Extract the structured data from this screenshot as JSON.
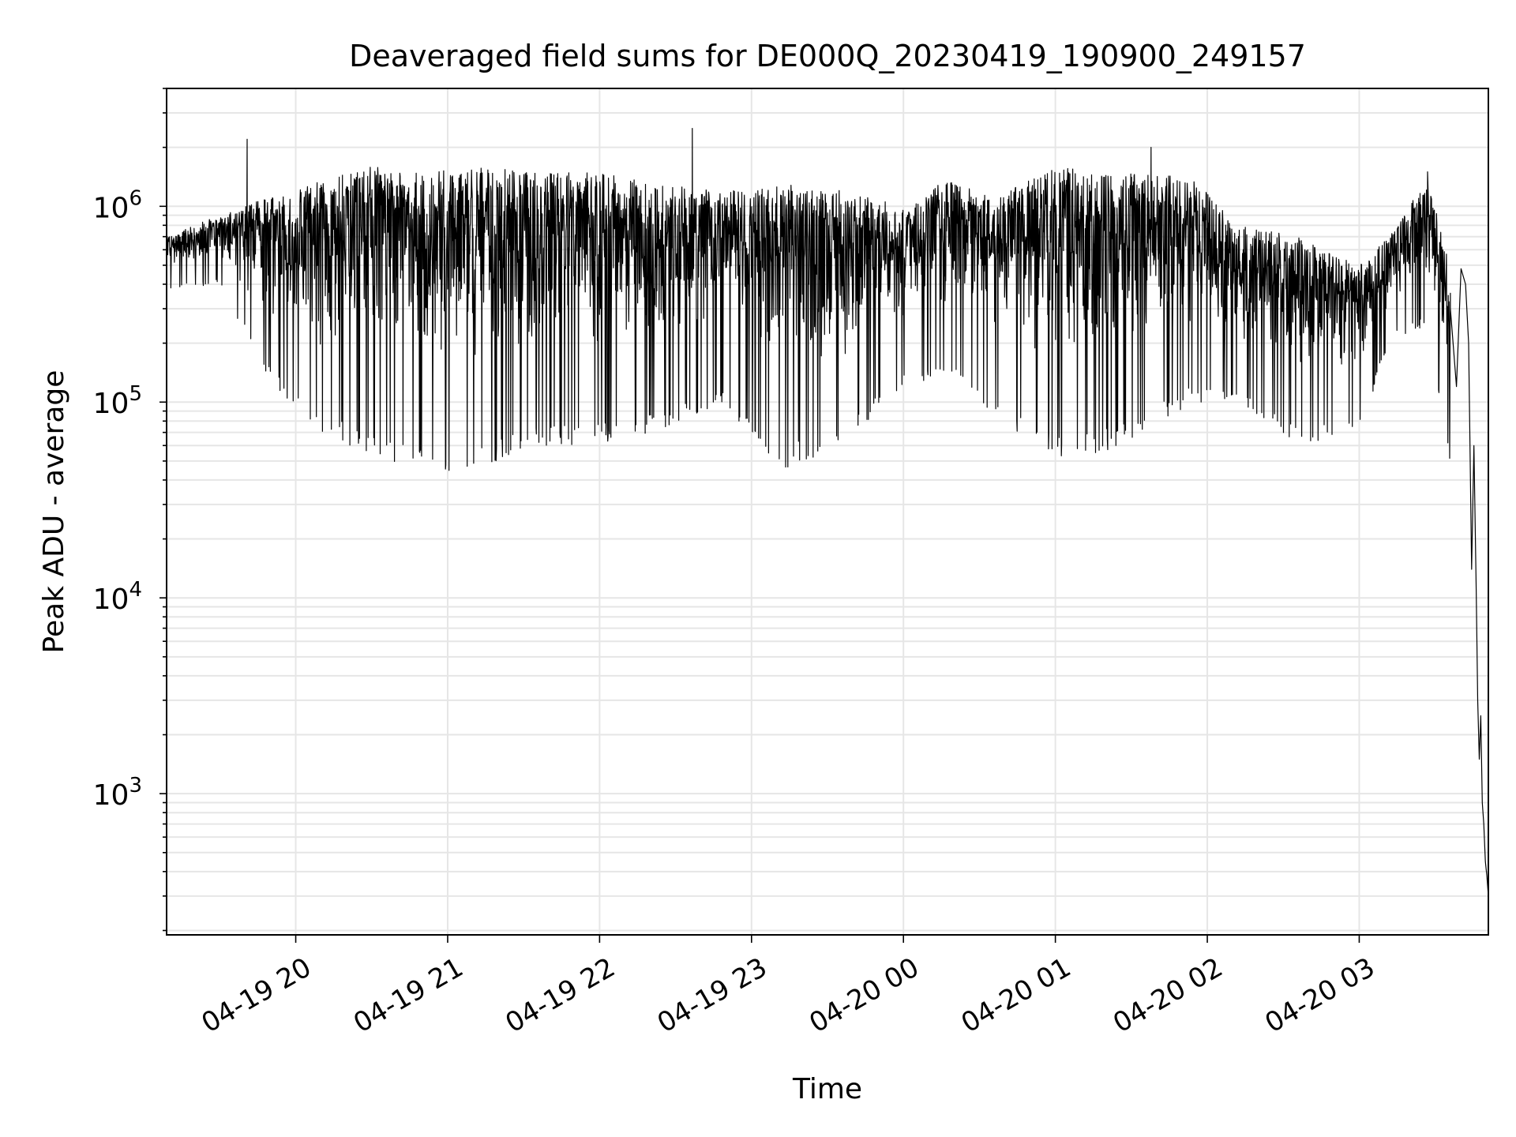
{
  "chart_data": {
    "type": "line",
    "title": "Deaveraged field sums for DE000Q_20230419_190900_249157",
    "xlabel": "Time",
    "ylabel": "Peak ADU - average",
    "yscale": "log",
    "ylim": [
      190,
      4000000
    ],
    "xlim_hours": [
      19.15,
      27.85
    ],
    "grid": true,
    "line_color": "#000000",
    "grid_color": "#e6e6e6",
    "x_ticks": [
      {
        "label": "04-19 20",
        "hour": 20
      },
      {
        "label": "04-19 21",
        "hour": 21
      },
      {
        "label": "04-19 22",
        "hour": 22
      },
      {
        "label": "04-19 23",
        "hour": 23
      },
      {
        "label": "04-20 00",
        "hour": 24
      },
      {
        "label": "04-20 01",
        "hour": 25
      },
      {
        "label": "04-20 02",
        "hour": 26
      },
      {
        "label": "04-20 03",
        "hour": 27
      }
    ],
    "y_ticks": [
      {
        "base": "10",
        "exp": "3",
        "value": 1000
      },
      {
        "base": "10",
        "exp": "4",
        "value": 10000
      },
      {
        "base": "10",
        "exp": "5",
        "value": 100000
      },
      {
        "base": "10",
        "exp": "6",
        "value": 1000000
      }
    ],
    "envelope": [
      {
        "hour": 19.15,
        "lo": 380000,
        "hi": 700000
      },
      {
        "hour": 19.5,
        "lo": 400000,
        "hi": 900000
      },
      {
        "hour": 19.8,
        "lo": 140000,
        "hi": 1100000
      },
      {
        "hour": 20.1,
        "lo": 70000,
        "hi": 1300000
      },
      {
        "hour": 20.5,
        "lo": 55000,
        "hi": 1600000
      },
      {
        "hour": 20.85,
        "lo": 43000,
        "hi": 1500000
      },
      {
        "hour": 21.2,
        "lo": 45000,
        "hi": 1600000
      },
      {
        "hour": 21.6,
        "lo": 60000,
        "hi": 1500000
      },
      {
        "hour": 22.0,
        "lo": 60000,
        "hi": 1500000
      },
      {
        "hour": 22.4,
        "lo": 70000,
        "hi": 1300000
      },
      {
        "hour": 22.8,
        "lo": 100000,
        "hi": 1200000
      },
      {
        "hour": 23.2,
        "lo": 45000,
        "hi": 1300000
      },
      {
        "hour": 23.6,
        "lo": 60000,
        "hi": 1200000
      },
      {
        "hour": 24.0,
        "lo": 120000,
        "hi": 1000000
      },
      {
        "hour": 24.3,
        "lo": 130000,
        "hi": 1400000
      },
      {
        "hour": 24.6,
        "lo": 85000,
        "hi": 1100000
      },
      {
        "hour": 25.0,
        "lo": 50000,
        "hi": 1600000
      },
      {
        "hour": 25.3,
        "lo": 55000,
        "hi": 1500000
      },
      {
        "hour": 25.6,
        "lo": 70000,
        "hi": 1500000
      },
      {
        "hour": 25.9,
        "lo": 100000,
        "hi": 1400000
      },
      {
        "hour": 26.2,
        "lo": 100000,
        "hi": 800000
      },
      {
        "hour": 26.6,
        "lo": 60000,
        "hi": 700000
      },
      {
        "hour": 27.0,
        "lo": 70000,
        "hi": 500000
      },
      {
        "hour": 27.2,
        "lo": 200000,
        "hi": 700000
      },
      {
        "hour": 27.45,
        "lo": 250000,
        "hi": 1400000
      },
      {
        "hour": 27.6,
        "lo": 45000,
        "hi": 500000
      }
    ],
    "tail": [
      {
        "hour": 27.6,
        "value": 300000
      },
      {
        "hour": 27.64,
        "value": 120000
      },
      {
        "hour": 27.67,
        "value": 480000
      },
      {
        "hour": 27.7,
        "value": 400000
      },
      {
        "hour": 27.72,
        "value": 200000
      },
      {
        "hour": 27.74,
        "value": 14000
      },
      {
        "hour": 27.755,
        "value": 60000
      },
      {
        "hour": 27.77,
        "value": 11000
      },
      {
        "hour": 27.78,
        "value": 3000
      },
      {
        "hour": 27.79,
        "value": 1500
      },
      {
        "hour": 27.8,
        "value": 2500
      },
      {
        "hour": 27.81,
        "value": 900
      },
      {
        "hour": 27.82,
        "value": 700
      },
      {
        "hour": 27.83,
        "value": 450
      },
      {
        "hour": 27.84,
        "value": 380
      },
      {
        "hour": 27.85,
        "value": 300
      }
    ],
    "spikes": [
      {
        "hour": 19.68,
        "value": 2200000
      },
      {
        "hour": 22.61,
        "value": 2500000
      },
      {
        "hour": 25.63,
        "value": 2000000
      },
      {
        "hour": 27.45,
        "value": 1500000
      }
    ]
  }
}
